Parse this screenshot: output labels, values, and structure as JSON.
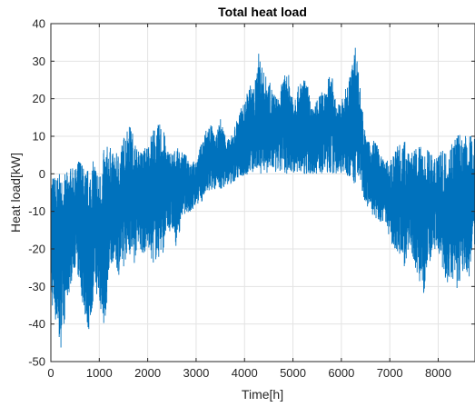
{
  "chart_data": {
    "type": "line",
    "title": "Total heat load",
    "xlabel": "Time[h]",
    "ylabel": "Heat load[kW]",
    "xlim": [
      0,
      8760
    ],
    "ylim": [
      -50,
      40
    ],
    "x_ticks": [
      0,
      1000,
      2000,
      3000,
      4000,
      5000,
      6000,
      7000,
      8000
    ],
    "y_ticks": [
      -50,
      -40,
      -30,
      -20,
      -10,
      0,
      10,
      20,
      30,
      40
    ],
    "grid": true,
    "series_color": "#0072BD",
    "series": [
      {
        "x": [
          0,
          100,
          200,
          300,
          400,
          500,
          600,
          700,
          800,
          900,
          1000,
          1100,
          1200,
          1300,
          1400,
          1500,
          1600,
          1700,
          1800,
          1900,
          2000,
          2100,
          2200,
          2300,
          2400,
          2500,
          2600,
          2700,
          2800,
          2900,
          3000,
          3100,
          3200,
          3300,
          3400,
          3500,
          3600,
          3700,
          3800,
          3900,
          4000,
          4100,
          4200,
          4300,
          4400,
          4500,
          4600,
          4700,
          4800,
          4900,
          5000,
          5100,
          5200,
          5300,
          5400,
          5500,
          5600,
          5700,
          5800,
          5900,
          6000,
          6100,
          6200,
          6300,
          6400,
          6500,
          6600,
          6700,
          6800,
          6900,
          7000,
          7100,
          7200,
          7300,
          7400,
          7500,
          7600,
          7700,
          7800,
          7900,
          8000,
          8100,
          8200,
          8300,
          8400,
          8500,
          8600,
          8700
        ],
        "max": [
          0,
          0,
          0,
          0,
          2,
          1,
          5,
          1,
          2,
          4,
          0,
          7,
          8,
          5,
          6,
          10,
          14,
          11,
          6,
          7,
          8,
          12,
          13,
          14,
          7,
          6,
          7,
          6,
          5,
          4,
          3,
          8,
          12,
          14,
          9,
          15,
          11,
          9,
          13,
          17,
          19,
          24,
          23,
          33,
          27,
          25,
          22,
          20,
          26,
          27,
          22,
          23,
          26,
          24,
          17,
          20,
          22,
          25,
          27,
          18,
          20,
          23,
          28,
          35,
          22,
          10,
          8,
          10,
          5,
          4,
          3,
          6,
          10,
          9,
          8,
          6,
          8,
          6,
          7,
          4,
          8,
          6,
          7,
          10,
          12,
          9,
          11,
          10
        ],
        "min": [
          -34,
          -40,
          -47,
          -38,
          -30,
          -25,
          -30,
          -38,
          -43,
          -30,
          -35,
          -41,
          -30,
          -22,
          -27,
          -25,
          -20,
          -26,
          -18,
          -22,
          -20,
          -24,
          -23,
          -22,
          -16,
          -15,
          -20,
          -12,
          -10,
          -11,
          -8,
          -8,
          -6,
          -5,
          -4,
          -5,
          -3,
          -3,
          -2,
          -1,
          -1,
          0,
          0,
          0,
          0,
          0,
          0,
          0,
          0,
          0,
          0,
          0,
          0,
          0,
          0,
          0,
          0,
          0,
          0,
          0,
          0,
          0,
          -2,
          -3,
          -3,
          -8,
          -10,
          -12,
          -14,
          -12,
          -18,
          -20,
          -22,
          -25,
          -20,
          -24,
          -28,
          -32,
          -25,
          -22,
          -20,
          -26,
          -30,
          -28,
          -32,
          -26,
          -33,
          -20
        ]
      }
    ]
  }
}
